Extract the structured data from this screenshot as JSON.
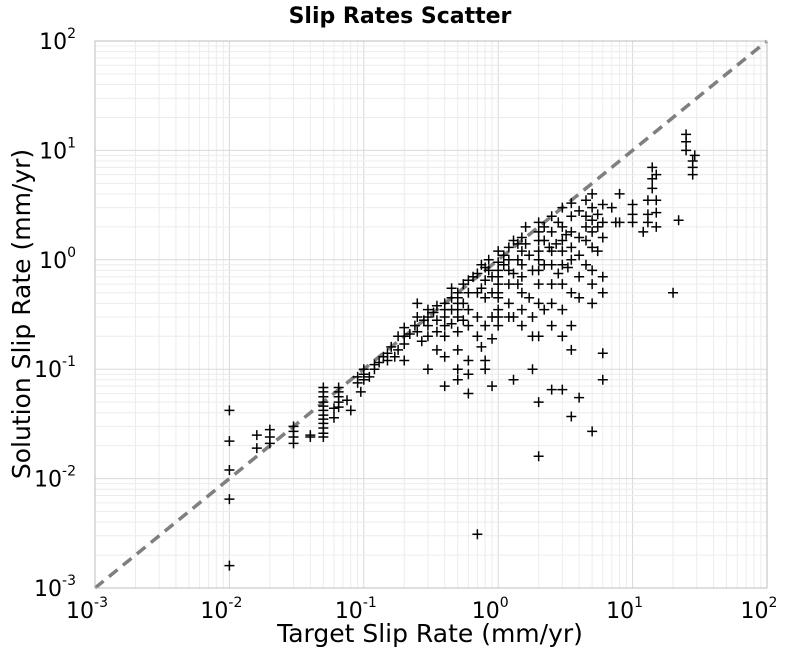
{
  "chart_data": {
    "type": "scatter",
    "title": "Slip Rates Scatter",
    "xlabel": "Target Slip Rate (mm/yr)",
    "ylabel": "Solution Slip Rate (mm/yr)",
    "x_scale": "log",
    "y_scale": "log",
    "xlim": [
      0.001,
      100
    ],
    "ylim": [
      0.001,
      100
    ],
    "x_ticks": [
      {
        "base": "10",
        "exp": "-3"
      },
      {
        "base": "10",
        "exp": "-2"
      },
      {
        "base": "10",
        "exp": "-1"
      },
      {
        "base": "10",
        "exp": "0"
      },
      {
        "base": "10",
        "exp": "1"
      },
      {
        "base": "10",
        "exp": "2"
      }
    ],
    "y_ticks": [
      {
        "base": "10",
        "exp": "-3"
      },
      {
        "base": "10",
        "exp": "-2"
      },
      {
        "base": "10",
        "exp": "-1"
      },
      {
        "base": "10",
        "exp": "0"
      },
      {
        "base": "10",
        "exp": "1"
      },
      {
        "base": "10",
        "exp": "2"
      }
    ],
    "grid": true,
    "marker": "+",
    "marker_color": "#000000",
    "reference_line": {
      "style": "dashed",
      "color": "#7f7f7f",
      "x": [
        0.001,
        100
      ],
      "y": [
        0.001,
        100
      ]
    },
    "points": [
      [
        0.01,
        0.042
      ],
      [
        0.01,
        0.022
      ],
      [
        0.01,
        0.012
      ],
      [
        0.01,
        0.0065
      ],
      [
        0.01,
        0.0016
      ],
      [
        0.016,
        0.025
      ],
      [
        0.016,
        0.019
      ],
      [
        0.02,
        0.028
      ],
      [
        0.02,
        0.024
      ],
      [
        0.02,
        0.021
      ],
      [
        0.03,
        0.03
      ],
      [
        0.03,
        0.027
      ],
      [
        0.03,
        0.024
      ],
      [
        0.03,
        0.021
      ],
      [
        0.04,
        0.025
      ],
      [
        0.04,
        0.024
      ],
      [
        0.05,
        0.068
      ],
      [
        0.05,
        0.062
      ],
      [
        0.05,
        0.056
      ],
      [
        0.05,
        0.05
      ],
      [
        0.05,
        0.046
      ],
      [
        0.05,
        0.042
      ],
      [
        0.05,
        0.038
      ],
      [
        0.05,
        0.035
      ],
      [
        0.05,
        0.032
      ],
      [
        0.05,
        0.029
      ],
      [
        0.05,
        0.026
      ],
      [
        0.05,
        0.024
      ],
      [
        0.06,
        0.036
      ],
      [
        0.06,
        0.044
      ],
      [
        0.065,
        0.068
      ],
      [
        0.065,
        0.062
      ],
      [
        0.065,
        0.056
      ],
      [
        0.065,
        0.05
      ],
      [
        0.065,
        0.045
      ],
      [
        0.075,
        0.052
      ],
      [
        0.08,
        0.042
      ],
      [
        0.09,
        0.075
      ],
      [
        0.09,
        0.085
      ],
      [
        0.095,
        0.062
      ],
      [
        0.1,
        0.08
      ],
      [
        0.1,
        0.09
      ],
      [
        0.1,
        0.1
      ],
      [
        0.11,
        0.085
      ],
      [
        0.12,
        0.11
      ],
      [
        0.12,
        0.1
      ],
      [
        0.13,
        0.115
      ],
      [
        0.14,
        0.13
      ],
      [
        0.15,
        0.14
      ],
      [
        0.15,
        0.12
      ],
      [
        0.16,
        0.16
      ],
      [
        0.17,
        0.13
      ],
      [
        0.18,
        0.2
      ],
      [
        0.18,
        0.15
      ],
      [
        0.2,
        0.24
      ],
      [
        0.2,
        0.2
      ],
      [
        0.2,
        0.17
      ],
      [
        0.2,
        0.12
      ],
      [
        0.22,
        0.21
      ],
      [
        0.24,
        0.25
      ],
      [
        0.25,
        0.22
      ],
      [
        0.25,
        0.3
      ],
      [
        0.25,
        0.4
      ],
      [
        0.27,
        0.18
      ],
      [
        0.28,
        0.28
      ],
      [
        0.3,
        0.3
      ],
      [
        0.3,
        0.35
      ],
      [
        0.3,
        0.25
      ],
      [
        0.3,
        0.2
      ],
      [
        0.3,
        0.1
      ],
      [
        0.33,
        0.33
      ],
      [
        0.35,
        0.38
      ],
      [
        0.35,
        0.28
      ],
      [
        0.35,
        0.22
      ],
      [
        0.35,
        0.15
      ],
      [
        0.4,
        0.4
      ],
      [
        0.4,
        0.35
      ],
      [
        0.4,
        0.3
      ],
      [
        0.4,
        0.25
      ],
      [
        0.4,
        0.2
      ],
      [
        0.4,
        0.13
      ],
      [
        0.4,
        0.07
      ],
      [
        0.45,
        0.45
      ],
      [
        0.45,
        0.55
      ],
      [
        0.45,
        0.35
      ],
      [
        0.45,
        0.26
      ],
      [
        0.5,
        0.5
      ],
      [
        0.5,
        0.45
      ],
      [
        0.5,
        0.4
      ],
      [
        0.5,
        0.35
      ],
      [
        0.5,
        0.3
      ],
      [
        0.5,
        0.22
      ],
      [
        0.5,
        0.15
      ],
      [
        0.5,
        0.1
      ],
      [
        0.5,
        0.08
      ],
      [
        0.55,
        0.6
      ],
      [
        0.55,
        0.28
      ],
      [
        0.55,
        0.4
      ],
      [
        0.6,
        0.65
      ],
      [
        0.6,
        0.5
      ],
      [
        0.6,
        0.35
      ],
      [
        0.6,
        0.25
      ],
      [
        0.6,
        0.12
      ],
      [
        0.6,
        0.09
      ],
      [
        0.6,
        0.06
      ],
      [
        0.65,
        0.7
      ],
      [
        0.7,
        0.75
      ],
      [
        0.7,
        0.5
      ],
      [
        0.7,
        0.3
      ],
      [
        0.7,
        0.2
      ],
      [
        0.7,
        0.0031
      ],
      [
        0.75,
        0.9
      ],
      [
        0.75,
        0.55
      ],
      [
        0.75,
        0.16
      ],
      [
        0.8,
        0.85
      ],
      [
        0.8,
        0.65
      ],
      [
        0.8,
        0.45
      ],
      [
        0.8,
        0.25
      ],
      [
        0.8,
        0.12
      ],
      [
        0.8,
        0.1
      ],
      [
        0.85,
        1.0
      ],
      [
        0.85,
        0.8
      ],
      [
        0.9,
        0.7
      ],
      [
        0.9,
        0.5
      ],
      [
        0.9,
        0.3
      ],
      [
        0.9,
        0.19
      ],
      [
        0.9,
        0.07
      ],
      [
        1.0,
        1.2
      ],
      [
        1.0,
        0.95
      ],
      [
        1.0,
        0.8
      ],
      [
        1.0,
        0.7
      ],
      [
        1.0,
        0.6
      ],
      [
        1.0,
        0.5
      ],
      [
        1.0,
        0.45
      ],
      [
        1.0,
        0.35
      ],
      [
        1.0,
        0.3
      ],
      [
        1.0,
        0.25
      ],
      [
        1.1,
        1.1
      ],
      [
        1.1,
        0.9
      ],
      [
        1.2,
        1.3
      ],
      [
        1.2,
        1.0
      ],
      [
        1.2,
        0.8
      ],
      [
        1.2,
        0.6
      ],
      [
        1.2,
        0.4
      ],
      [
        1.2,
        0.3
      ],
      [
        1.3,
        1.5
      ],
      [
        1.3,
        0.75
      ],
      [
        1.3,
        0.3
      ],
      [
        1.3,
        0.08
      ],
      [
        1.4,
        1.4
      ],
      [
        1.4,
        1.0
      ],
      [
        1.4,
        0.6
      ],
      [
        1.5,
        1.6
      ],
      [
        1.5,
        1.2
      ],
      [
        1.5,
        0.9
      ],
      [
        1.5,
        0.7
      ],
      [
        1.5,
        0.5
      ],
      [
        1.5,
        0.35
      ],
      [
        1.5,
        0.25
      ],
      [
        1.6,
        2.0
      ],
      [
        1.6,
        1.4
      ],
      [
        1.7,
        1.1
      ],
      [
        1.7,
        0.45
      ],
      [
        1.8,
        0.8
      ],
      [
        1.8,
        0.3
      ],
      [
        1.8,
        0.2
      ],
      [
        1.8,
        0.1
      ],
      [
        2.0,
        2.2
      ],
      [
        2.0,
        1.8
      ],
      [
        2.0,
        1.5
      ],
      [
        2.0,
        1.2
      ],
      [
        2.0,
        1.0
      ],
      [
        2.0,
        0.8
      ],
      [
        2.0,
        0.6
      ],
      [
        2.0,
        0.4
      ],
      [
        2.0,
        0.2
      ],
      [
        2.0,
        0.05
      ],
      [
        2.0,
        0.016
      ],
      [
        2.2,
        2.0
      ],
      [
        2.2,
        1.5
      ],
      [
        2.2,
        0.9
      ],
      [
        2.2,
        0.35
      ],
      [
        2.4,
        1.3
      ],
      [
        2.5,
        2.5
      ],
      [
        2.5,
        1.8
      ],
      [
        2.5,
        1.2
      ],
      [
        2.5,
        0.9
      ],
      [
        2.5,
        0.6
      ],
      [
        2.5,
        0.4
      ],
      [
        2.5,
        0.25
      ],
      [
        2.5,
        0.065
      ],
      [
        2.7,
        1.4
      ],
      [
        2.8,
        2.2
      ],
      [
        2.8,
        0.75
      ],
      [
        3.0,
        3.0
      ],
      [
        3.0,
        2.0
      ],
      [
        3.0,
        1.5
      ],
      [
        3.0,
        1.2
      ],
      [
        3.0,
        0.9
      ],
      [
        3.0,
        0.6
      ],
      [
        3.0,
        0.35
      ],
      [
        3.0,
        0.2
      ],
      [
        3.0,
        0.065
      ],
      [
        3.2,
        1.7
      ],
      [
        3.3,
        0.85
      ],
      [
        3.5,
        3.3
      ],
      [
        3.5,
        2.5
      ],
      [
        3.5,
        1.8
      ],
      [
        3.5,
        1.3
      ],
      [
        3.5,
        1.0
      ],
      [
        3.5,
        0.5
      ],
      [
        3.5,
        0.25
      ],
      [
        3.5,
        0.15
      ],
      [
        3.5,
        0.037
      ],
      [
        4.0,
        2.8
      ],
      [
        4.0,
        1.6
      ],
      [
        4.0,
        1.1
      ],
      [
        4.0,
        0.7
      ],
      [
        4.0,
        0.45
      ],
      [
        4.0,
        0.055
      ],
      [
        4.5,
        3.5
      ],
      [
        4.5,
        2.5
      ],
      [
        4.5,
        2.0
      ],
      [
        4.5,
        1.5
      ],
      [
        4.5,
        0.9
      ],
      [
        5.0,
        4.0
      ],
      [
        5.0,
        3.0
      ],
      [
        5.0,
        2.3
      ],
      [
        5.0,
        1.8
      ],
      [
        5.0,
        1.3
      ],
      [
        5.0,
        0.8
      ],
      [
        5.0,
        0.6
      ],
      [
        5.0,
        0.4
      ],
      [
        5.0,
        0.027
      ],
      [
        5.5,
        2.6
      ],
      [
        5.5,
        2.0
      ],
      [
        5.5,
        1.2
      ],
      [
        6.0,
        3.2
      ],
      [
        6.0,
        2.2
      ],
      [
        6.0,
        1.6
      ],
      [
        6.0,
        0.7
      ],
      [
        6.0,
        0.5
      ],
      [
        6.0,
        0.14
      ],
      [
        6.0,
        0.08
      ],
      [
        7.0,
        3.0
      ],
      [
        7.5,
        2.2
      ],
      [
        8.0,
        4.0
      ],
      [
        8.0,
        2.2
      ],
      [
        10.0,
        3.2
      ],
      [
        10.0,
        2.6
      ],
      [
        10.0,
        2.2
      ],
      [
        12.0,
        1.8
      ],
      [
        13.0,
        3.5
      ],
      [
        13.0,
        2.6
      ],
      [
        13.0,
        2.2
      ],
      [
        14.0,
        7.0
      ],
      [
        14.0,
        5.5
      ],
      [
        14.0,
        4.5
      ],
      [
        15.0,
        6.0
      ],
      [
        15.0,
        3.5
      ],
      [
        15.0,
        2.7
      ],
      [
        15.0,
        2.0
      ],
      [
        20.0,
        0.5
      ],
      [
        22.0,
        2.3
      ],
      [
        25.0,
        14.0
      ],
      [
        25.0,
        12.0
      ],
      [
        25.0,
        10.0
      ],
      [
        28.0,
        8.0
      ],
      [
        28.0,
        7.0
      ],
      [
        28.0,
        6.0
      ],
      [
        29.0,
        9.0
      ]
    ]
  }
}
